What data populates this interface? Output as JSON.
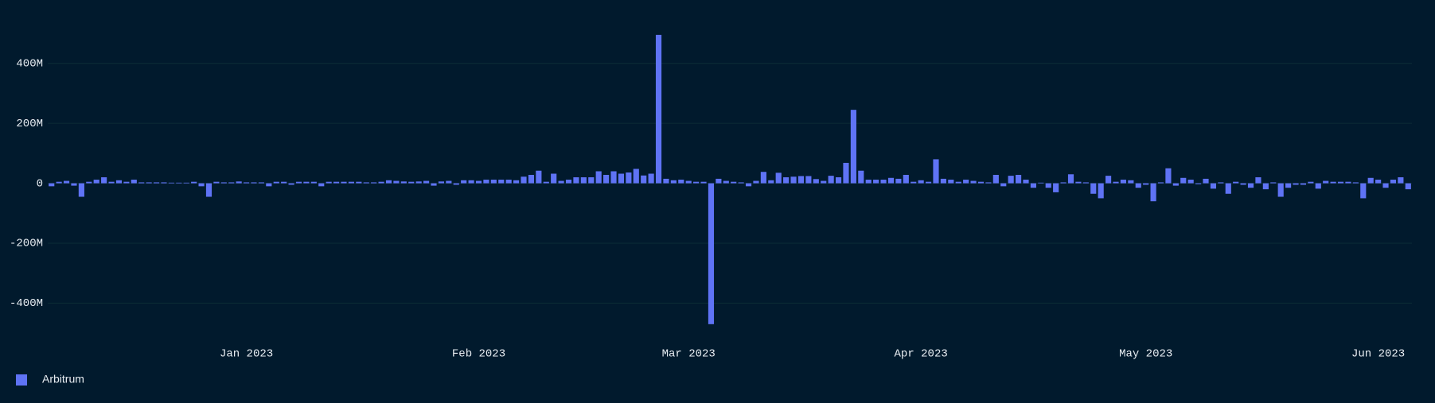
{
  "chart_data": {
    "type": "bar",
    "categories": [
      null,
      null,
      null,
      null,
      null,
      null,
      null,
      null,
      null,
      null,
      null,
      null,
      null,
      null,
      null,
      null,
      null,
      null,
      null,
      null,
      null,
      null,
      null,
      null,
      null,
      null,
      "Jan 2023",
      null,
      null,
      null,
      null,
      null,
      null,
      null,
      null,
      null,
      null,
      null,
      null,
      null,
      null,
      null,
      null,
      null,
      null,
      null,
      null,
      null,
      null,
      null,
      null,
      null,
      null,
      null,
      null,
      null,
      null,
      "Feb 2023",
      null,
      null,
      null,
      null,
      null,
      null,
      null,
      null,
      null,
      null,
      null,
      null,
      null,
      null,
      null,
      null,
      null,
      null,
      null,
      null,
      null,
      null,
      null,
      null,
      null,
      null,
      null,
      "Mar 2023",
      null,
      null,
      null,
      null,
      null,
      null,
      null,
      null,
      null,
      null,
      null,
      null,
      null,
      null,
      null,
      null,
      null,
      null,
      null,
      null,
      null,
      null,
      null,
      null,
      null,
      null,
      null,
      null,
      null,
      null,
      "Apr 2023",
      null,
      null,
      null,
      null,
      null,
      null,
      null,
      null,
      null,
      null,
      null,
      null,
      null,
      null,
      null,
      null,
      null,
      null,
      null,
      null,
      null,
      null,
      null,
      null,
      null,
      null,
      null,
      null,
      null,
      "May 2023",
      null,
      null,
      null,
      null,
      null,
      null,
      null,
      null,
      null,
      null,
      null,
      null,
      null,
      null,
      null,
      null,
      null,
      null,
      null,
      null,
      null,
      null,
      null,
      null,
      null,
      null,
      null,
      null,
      null,
      null,
      "Jun 2023",
      null,
      null,
      null,
      null
    ],
    "series": [
      {
        "name": "Arbitrum",
        "color": "#5f73f5",
        "values": [
          -10000000.0,
          5000000.0,
          8000000.0,
          -8000000.0,
          -45000000.0,
          5000000.0,
          12000000.0,
          20000000.0,
          5000000.0,
          10000000.0,
          5000000.0,
          12000000.0,
          3000000.0,
          3000000.0,
          3000000.0,
          3000000.0,
          2000000.0,
          2000000.0,
          2000000.0,
          5000000.0,
          -10000000.0,
          -45000000.0,
          5000000.0,
          3000000.0,
          3000000.0,
          6000000.0,
          3000000.0,
          3000000.0,
          3000000.0,
          -10000000.0,
          5000000.0,
          5000000.0,
          -5000000.0,
          5000000.0,
          5000000.0,
          5000000.0,
          -10000000.0,
          5000000.0,
          5000000.0,
          5000000.0,
          5000000.0,
          5000000.0,
          3000000.0,
          3000000.0,
          5000000.0,
          10000000.0,
          8000000.0,
          6000000.0,
          5000000.0,
          6000000.0,
          8000000.0,
          -8000000.0,
          6000000.0,
          8000000.0,
          -5000000.0,
          10000000.0,
          10000000.0,
          8000000.0,
          12000000.0,
          12000000.0,
          12000000.0,
          12000000.0,
          10000000.0,
          22000000.0,
          28000000.0,
          42000000.0,
          5000000.0,
          32000000.0,
          8000000.0,
          12000000.0,
          20000000.0,
          20000000.0,
          20000000.0,
          40000000.0,
          28000000.0,
          40000000.0,
          32000000.0,
          36000000.0,
          48000000.0,
          26000000.0,
          32000000.0,
          495000000.0,
          15000000.0,
          10000000.0,
          12000000.0,
          8000000.0,
          5000000.0,
          5000000.0,
          -470000000.0,
          15000000.0,
          8000000.0,
          5000000.0,
          3000000.0,
          -10000000.0,
          8000000.0,
          38000000.0,
          10000000.0,
          35000000.0,
          20000000.0,
          22000000.0,
          24000000.0,
          24000000.0,
          14000000.0,
          8000000.0,
          25000000.0,
          20000000.0,
          68000000.0,
          245000000.0,
          42000000.0,
          12000000.0,
          12000000.0,
          12000000.0,
          18000000.0,
          15000000.0,
          28000000.0,
          5000000.0,
          10000000.0,
          5000000.0,
          80000000.0,
          15000000.0,
          12000000.0,
          5000000.0,
          12000000.0,
          8000000.0,
          5000000.0,
          3000000.0,
          28000000.0,
          -10000000.0,
          25000000.0,
          28000000.0,
          12000000.0,
          -15000000.0,
          2000000.0,
          -15000000.0,
          -30000000.0,
          3000000.0,
          30000000.0,
          5000000.0,
          3000000.0,
          -35000000.0,
          -50000000.0,
          25000000.0,
          5000000.0,
          12000000.0,
          10000000.0,
          -15000000.0,
          -5000000.0,
          -60000000.0,
          3000000.0,
          50000000.0,
          -8000000.0,
          18000000.0,
          12000000.0,
          -3000000.0,
          15000000.0,
          -18000000.0,
          3000000.0,
          -35000000.0,
          5000000.0,
          -5000000.0,
          -15000000.0,
          20000000.0,
          -20000000.0,
          3000000.0,
          -45000000.0,
          -15000000.0,
          -5000000.0,
          -5000000.0,
          5000000.0,
          -18000000.0,
          8000000.0,
          5000000.0,
          5000000.0,
          5000000.0,
          3000000.0,
          -50000000.0,
          18000000.0,
          12000000.0,
          -15000000.0,
          12000000.0,
          20000000.0,
          -20000000.0
        ]
      }
    ],
    "ylim": [
      -550000000.0,
      500000000.0
    ],
    "yticks": [
      {
        "value": -400000000.0,
        "label": "-400M"
      },
      {
        "value": -200000000.0,
        "label": "-200M"
      },
      0,
      {
        "value": 200000000.0,
        "label": "200M"
      },
      {
        "value": 400000000.0,
        "label": "400M"
      }
    ],
    "grid": true,
    "legend": "bottom-left"
  }
}
